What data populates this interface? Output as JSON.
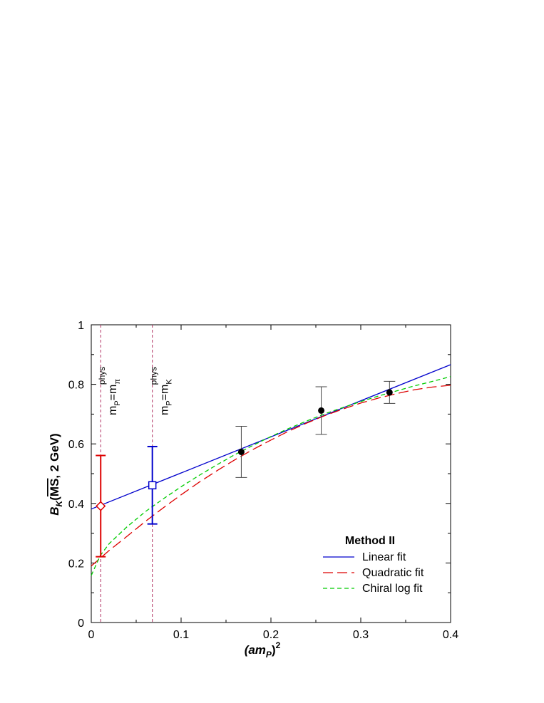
{
  "chart_data": {
    "type": "scatter",
    "xlabel": "(am_P)^2",
    "xlabel_parts": {
      "base": "(am",
      "sub": "P",
      "close": ")",
      "sup": "2"
    },
    "ylabel": "B_K(MS-bar, 2 GeV)",
    "ylabel_parts": {
      "base": "B",
      "sub": "K",
      "open": "(",
      "bar": "MS",
      "rest": ", 2 GeV)"
    },
    "xlim": [
      0,
      0.4
    ],
    "ylim": [
      0,
      1
    ],
    "xticks": [
      0,
      0.1,
      0.2,
      0.3,
      0.4
    ],
    "xtick_labels": [
      "0",
      "0.1",
      "0.2",
      "0.3",
      "0.4"
    ],
    "yticks": [
      0,
      0.2,
      0.4,
      0.6,
      0.8,
      1
    ],
    "ytick_labels": [
      "0",
      "0.2",
      "0.4",
      "0.6",
      "0.8",
      "1"
    ],
    "grid": false,
    "legend": {
      "title": "Method II",
      "placement": "bottom-right",
      "entries": [
        "Linear fit",
        "Quadratic fit",
        "Chiral log fit"
      ]
    },
    "data_points": {
      "x": [
        0.167,
        0.256,
        0.332
      ],
      "y": [
        0.573,
        0.712,
        0.773
      ],
      "err": [
        0.086,
        0.08,
        0.037
      ]
    },
    "extrapolations": [
      {
        "name": "m_P = m_pi^phys",
        "x": 0.0105,
        "y": 0.391,
        "err_low": 0.17,
        "err_high": 0.17,
        "marker": "diamond",
        "color": "#dd0000"
      },
      {
        "name": "m_P = m_K^phys",
        "x": 0.068,
        "y": 0.461,
        "err_low": 0.13,
        "err_high": 0.13,
        "marker": "square",
        "color": "#0000cc"
      }
    ],
    "vertical_lines": [
      {
        "x": 0.0105,
        "label": {
          "base": "m",
          "sub": "P",
          "eq": "=m",
          "sub2": "π",
          "sup": "phys"
        }
      },
      {
        "x": 0.068,
        "label": {
          "base": "m",
          "sub": "P",
          "eq": "=m",
          "sub2": "K",
          "sup": "phys"
        }
      }
    ],
    "series": [
      {
        "name": "Linear fit",
        "color": "#0000cc",
        "dash": "solid",
        "x": [
          0,
          0.4
        ],
        "y": [
          0.381,
          0.866
        ]
      },
      {
        "name": "Quadratic fit",
        "color": "#dd0000",
        "dash": "long-dash",
        "x": [
          0,
          0.02,
          0.04,
          0.06,
          0.08,
          0.1,
          0.12,
          0.14,
          0.16,
          0.18,
          0.2,
          0.22,
          0.24,
          0.26,
          0.28,
          0.3,
          0.32,
          0.34,
          0.36,
          0.38,
          0.4
        ],
        "y": [
          0.19,
          0.242,
          0.29,
          0.339,
          0.385,
          0.429,
          0.471,
          0.51,
          0.547,
          0.581,
          0.613,
          0.643,
          0.67,
          0.695,
          0.717,
          0.737,
          0.754,
          0.769,
          0.782,
          0.791,
          0.797
        ]
      },
      {
        "name": "Chiral log fit",
        "color": "#00cc00",
        "dash": "short-dash",
        "x": [
          0,
          0.01,
          0.02,
          0.04,
          0.06,
          0.08,
          0.1,
          0.12,
          0.14,
          0.16,
          0.18,
          0.2,
          0.22,
          0.24,
          0.26,
          0.28,
          0.3,
          0.32,
          0.34,
          0.36,
          0.38,
          0.4
        ],
        "y": [
          0.158,
          0.225,
          0.265,
          0.322,
          0.372,
          0.415,
          0.456,
          0.494,
          0.53,
          0.564,
          0.595,
          0.625,
          0.652,
          0.677,
          0.701,
          0.722,
          0.742,
          0.761,
          0.778,
          0.795,
          0.81,
          0.826
        ]
      }
    ]
  }
}
